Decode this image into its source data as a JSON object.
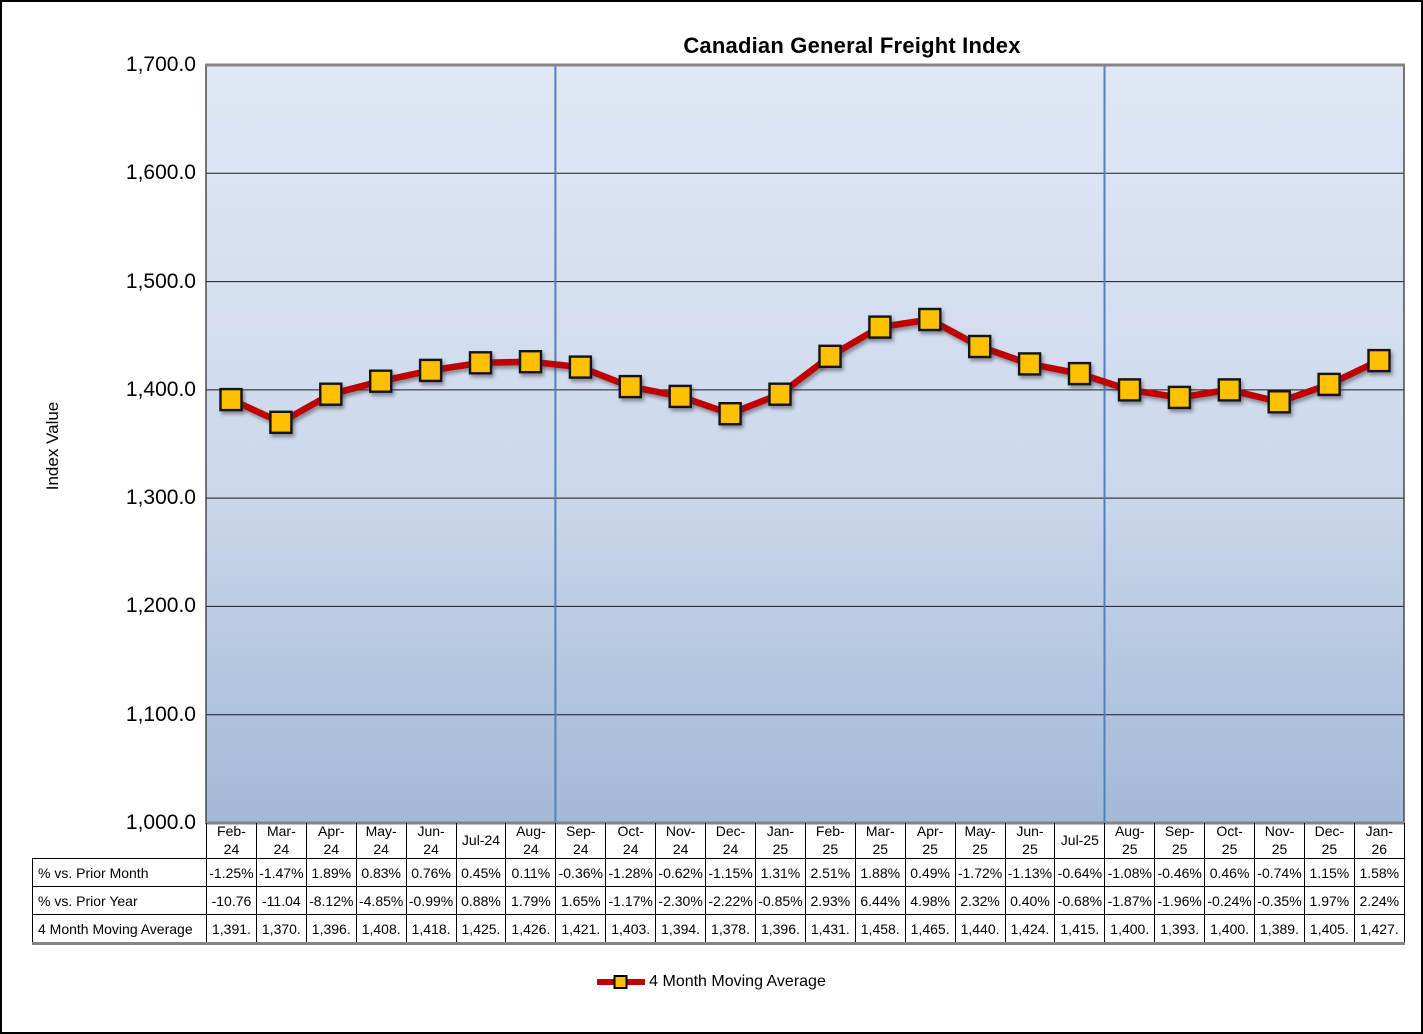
{
  "chart": {
    "title": "Canadian General Freight Index",
    "y_axis_title": "Index Value"
  },
  "legend": {
    "label": "4 Month Moving Average"
  },
  "chart_data": {
    "type": "line",
    "title": "Canadian General Freight Index",
    "xlabel": "",
    "ylabel": "Index Value",
    "categories": [
      "Feb-24",
      "Mar-24",
      "Apr-24",
      "May-24",
      "Jun-24",
      "Jul-24",
      "Aug-24",
      "Sep-24",
      "Oct-24",
      "Nov-24",
      "Dec-24",
      "Jan-25",
      "Feb-25",
      "Mar-25",
      "Apr-25",
      "May-25",
      "Jun-25",
      "Jul-25",
      "Aug-25",
      "Sep-25",
      "Oct-25",
      "Nov-25",
      "Dec-25",
      "Jan-26"
    ],
    "series": [
      {
        "name": "4 Month Moving Average",
        "values": [
          1391,
          1370,
          1396,
          1408,
          1418,
          1425,
          1426,
          1421,
          1403,
          1394,
          1378,
          1396,
          1431,
          1458,
          1465,
          1440,
          1424,
          1415,
          1400,
          1393,
          1400,
          1389,
          1405,
          1427
        ]
      }
    ],
    "ylim": [
      1000,
      1700
    ],
    "y_tick_step": 100,
    "y_tick_labels": [
      "1,700.0",
      "1,600.0",
      "1,500.0",
      "1,400.0",
      "1,300.0",
      "1,200.0",
      "1,100.0",
      "1,000.0"
    ],
    "grid": "horizontal-black",
    "legend_position": "bottom",
    "vertical_separators_after": [
      "Aug-24",
      "Jul-25"
    ],
    "line_color": "#c00000",
    "marker_fill": "#ffc000",
    "marker_border": "#141414",
    "separator_color": "#4f81bd",
    "gridline_color": "#1a1a1a",
    "plot_border_color": "#858585",
    "plot_bg_top": "#e0e8f5",
    "plot_bg_mid": "#ccd8ec",
    "plot_bg_bottom": "#a3b9d7"
  },
  "table": {
    "column_headers": [
      "Feb-\n24",
      "Mar-\n24",
      "Apr-\n24",
      "May-\n24",
      "Jun-\n24",
      "Jul-24",
      "Aug-\n24",
      "Sep-\n24",
      "Oct-\n24",
      "Nov-\n24",
      "Dec-\n24",
      "Jan-\n25",
      "Feb-\n25",
      "Mar-\n25",
      "Apr-\n25",
      "May-\n25",
      "Jun-\n25",
      "Jul-25",
      "Aug-\n25",
      "Sep-\n25",
      "Oct-\n25",
      "Nov-\n25",
      "Dec-\n25",
      "Jan-\n26"
    ],
    "rows": [
      {
        "label": "% vs. Prior Month",
        "values": [
          "-1.25%",
          "-1.47%",
          "1.89%",
          "0.83%",
          "0.76%",
          "0.45%",
          "0.11%",
          "-0.36%",
          "-1.28%",
          "-0.62%",
          "-1.15%",
          "1.31%",
          "2.51%",
          "1.88%",
          "0.49%",
          "-1.72%",
          "-1.13%",
          "-0.64%",
          "-1.08%",
          "-0.46%",
          "0.46%",
          "-0.74%",
          "1.15%",
          "1.58%"
        ]
      },
      {
        "label": "% vs. Prior Year",
        "values": [
          "-10.76",
          "-11.04",
          "-8.12%",
          "-4.85%",
          "-0.99%",
          "0.88%",
          "1.79%",
          "1.65%",
          "-1.17%",
          "-2.30%",
          "-2.22%",
          "-0.85%",
          "2.93%",
          "6.44%",
          "4.98%",
          "2.32%",
          "0.40%",
          "-0.68%",
          "-1.87%",
          "-1.96%",
          "-0.24%",
          "-0.35%",
          "1.97%",
          "2.24%"
        ]
      },
      {
        "label": "4 Month Moving Average",
        "values": [
          "1,391.",
          "1,370.",
          "1,396.",
          "1,408.",
          "1,418.",
          "1,425.",
          "1,426.",
          "1,421.",
          "1,403.",
          "1,394.",
          "1,378.",
          "1,396.",
          "1,431.",
          "1,458.",
          "1,465.",
          "1,440.",
          "1,424.",
          "1,415.",
          "1,400.",
          "1,393.",
          "1,400.",
          "1,389.",
          "1,405.",
          "1,427."
        ]
      }
    ]
  }
}
